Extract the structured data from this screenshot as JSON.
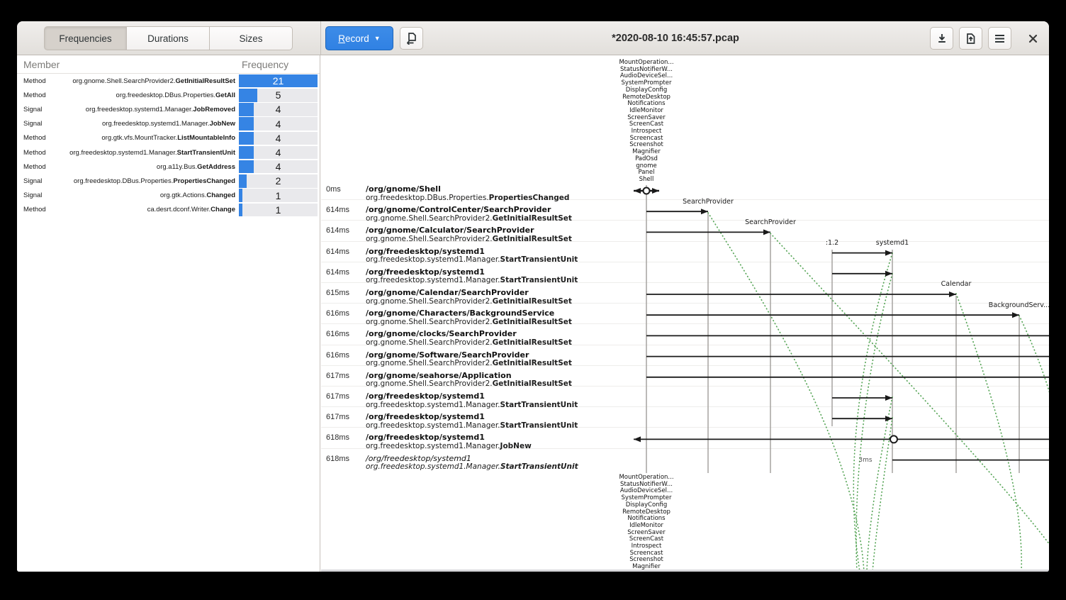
{
  "header": {
    "tabs": [
      {
        "label": "Frequencies",
        "active": true
      },
      {
        "label": "Durations",
        "active": false
      },
      {
        "label": "Sizes",
        "active": false
      }
    ],
    "record": {
      "underline": "R",
      "rest": "ecord"
    },
    "title": "*2020-08-10 16:45:57.pcap",
    "icons": [
      "open-pcap",
      "download",
      "save-as",
      "menu",
      "close"
    ]
  },
  "stats": {
    "columns": [
      "Member",
      "Frequency"
    ],
    "max": 21,
    "rows": [
      {
        "kind": "Method",
        "iface": "org.gnome.Shell.SearchProvider2.",
        "member": "GetInitialResultSet",
        "count": 21
      },
      {
        "kind": "Method",
        "iface": "org.freedesktop.DBus.Properties.",
        "member": "GetAll",
        "count": 5
      },
      {
        "kind": "Signal",
        "iface": "org.freedesktop.systemd1.Manager.",
        "member": "JobRemoved",
        "count": 4
      },
      {
        "kind": "Signal",
        "iface": "org.freedesktop.systemd1.Manager.",
        "member": "JobNew",
        "count": 4
      },
      {
        "kind": "Method",
        "iface": "org.gtk.vfs.MountTracker.",
        "member": "ListMountableInfo",
        "count": 4
      },
      {
        "kind": "Method",
        "iface": "org.freedesktop.systemd1.Manager.",
        "member": "StartTransientUnit",
        "count": 4
      },
      {
        "kind": "Method",
        "iface": "org.a11y.Bus.",
        "member": "GetAddress",
        "count": 4
      },
      {
        "kind": "Signal",
        "iface": "org.freedesktop.DBus.Properties.",
        "member": "PropertiesChanged",
        "count": 2
      },
      {
        "kind": "Signal",
        "iface": "org.gtk.Actions.",
        "member": "Changed",
        "count": 1
      },
      {
        "kind": "Method",
        "iface": "ca.desrt.dconf.Writer.",
        "member": "Change",
        "count": 1
      }
    ]
  },
  "timeline": {
    "rows": [
      {
        "t": "0ms",
        "path": "/org/gnome/Shell",
        "iface": "org.freedesktop.DBus.Properties.",
        "member": "PropertiesChanged",
        "italic": false
      },
      {
        "t": "614ms",
        "path": "/org/gnome/ControlCenter/SearchProvider",
        "iface": "org.gnome.Shell.SearchProvider2.",
        "member": "GetInitialResultSet",
        "italic": false
      },
      {
        "t": "614ms",
        "path": "/org/gnome/Calculator/SearchProvider",
        "iface": "org.gnome.Shell.SearchProvider2.",
        "member": "GetInitialResultSet",
        "italic": false
      },
      {
        "t": "614ms",
        "path": "/org/freedesktop/systemd1",
        "iface": "org.freedesktop.systemd1.Manager.",
        "member": "StartTransientUnit",
        "italic": false
      },
      {
        "t": "614ms",
        "path": "/org/freedesktop/systemd1",
        "iface": "org.freedesktop.systemd1.Manager.",
        "member": "StartTransientUnit",
        "italic": false
      },
      {
        "t": "615ms",
        "path": "/org/gnome/Calendar/SearchProvider",
        "iface": "org.gnome.Shell.SearchProvider2.",
        "member": "GetInitialResultSet",
        "italic": false
      },
      {
        "t": "616ms",
        "path": "/org/gnome/Characters/BackgroundService",
        "iface": "org.gnome.Shell.SearchProvider2.",
        "member": "GetInitialResultSet",
        "italic": false
      },
      {
        "t": "616ms",
        "path": "/org/gnome/clocks/SearchProvider",
        "iface": "org.gnome.Shell.SearchProvider2.",
        "member": "GetInitialResultSet",
        "italic": false
      },
      {
        "t": "616ms",
        "path": "/org/gnome/Software/SearchProvider",
        "iface": "org.gnome.Shell.SearchProvider2.",
        "member": "GetInitialResultSet",
        "italic": false
      },
      {
        "t": "617ms",
        "path": "/org/gnome/seahorse/Application",
        "iface": "org.gnome.Shell.SearchProvider2.",
        "member": "GetInitialResultSet",
        "italic": false
      },
      {
        "t": "617ms",
        "path": "/org/freedesktop/systemd1",
        "iface": "org.freedesktop.systemd1.Manager.",
        "member": "StartTransientUnit",
        "italic": false
      },
      {
        "t": "617ms",
        "path": "/org/freedesktop/systemd1",
        "iface": "org.freedesktop.systemd1.Manager.",
        "member": "StartTransientUnit",
        "italic": false
      },
      {
        "t": "618ms",
        "path": "/org/freedesktop/systemd1",
        "iface": "org.freedesktop.systemd1.Manager.",
        "member": "JobNew",
        "italic": false
      },
      {
        "t": "618ms",
        "path": "/org/freedesktop/systemd1",
        "iface": "org.freedesktop.systemd1.Manager.",
        "member": "StartTransientUnit",
        "italic": true
      }
    ]
  },
  "diagram": {
    "top_labels": [
      "MountOperation...",
      "StatusNotifierW...",
      "AudioDeviceSel...",
      "SystemPrompter",
      "DisplayConfig",
      "RemoteDesktop",
      "Notifications",
      "IdleMonitor",
      "ScreenSaver",
      "ScreenCast",
      "Introspect",
      "Screencast",
      "Screenshot",
      "Magnifier",
      "PadOsd",
      "gnome",
      "Panel",
      "Shell"
    ],
    "bottom_labels": [
      "MountOperation...",
      "StatusNotifierW...",
      "AudioDeviceSel...",
      "SystemPrompter",
      "DisplayConfig",
      "RemoteDesktop",
      "Notifications",
      "IdleMonitor",
      "ScreenSaver",
      "ScreenCast",
      "Introspect",
      "Screencast",
      "Screenshot",
      "Magnifier"
    ],
    "lifeline_labels": [
      "SearchProvider",
      "SearchProvider",
      ":1.2",
      "systemd1",
      "Calendar",
      "BackgroundServ..."
    ],
    "duration_label": "3ms"
  },
  "colors": {
    "accent_blue": "#3584e4",
    "reply_green": "#57a557",
    "lifeline_gray": "#a5a3a0",
    "arrow_black": "#1a1a1a"
  }
}
